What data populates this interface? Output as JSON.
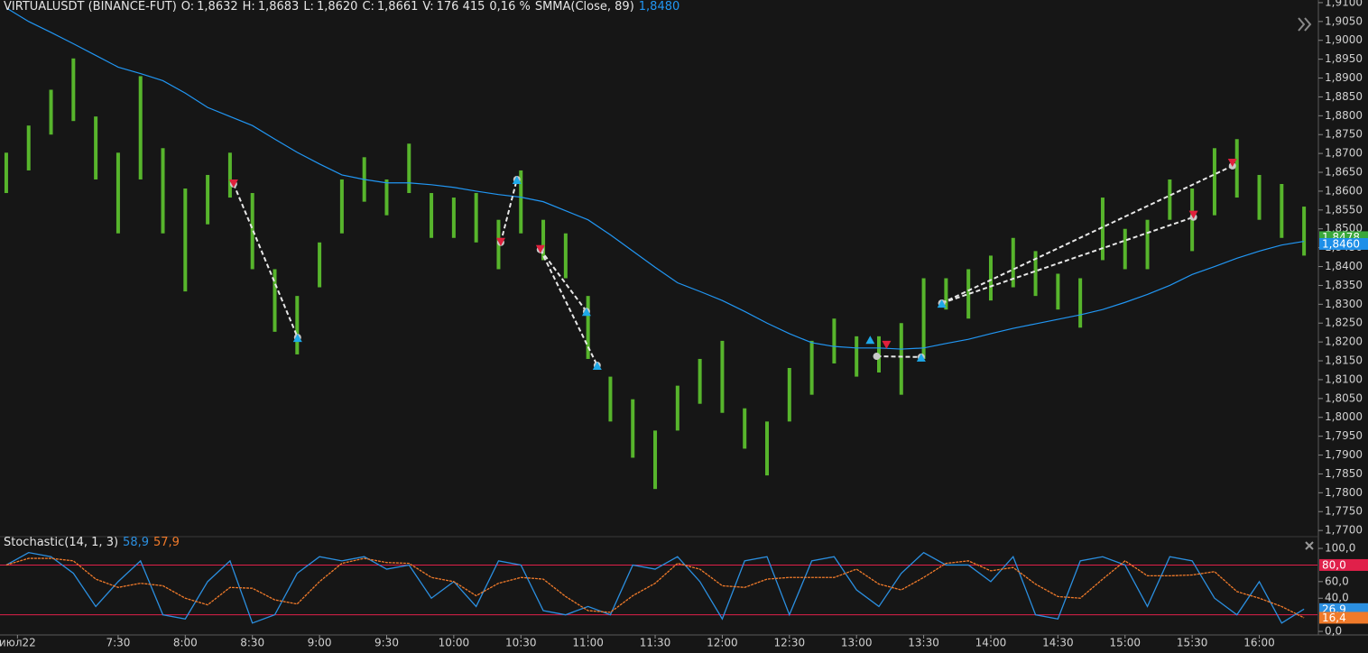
{
  "chart_data": [
    {
      "type": "range-bar",
      "title": "VIRTUALUSDT (BINANCE-FUT)",
      "stats": [
        {
          "label": "O:",
          "value": "1,8632"
        },
        {
          "label": "H:",
          "value": "1,8683"
        },
        {
          "label": "L:",
          "value": "1,8620"
        },
        {
          "label": "C:",
          "value": "1,8661"
        },
        {
          "label": "V:",
          "value": "176 415"
        }
      ],
      "change": "0,16 %",
      "x": [
        400,
        410,
        420,
        430,
        440,
        450,
        460,
        470,
        480,
        490,
        500,
        510,
        520,
        530,
        540,
        550,
        560,
        570,
        580,
        590,
        600,
        610,
        620,
        630,
        640,
        650,
        660,
        670,
        680,
        690,
        700,
        710,
        720,
        730,
        740,
        750,
        760,
        770,
        780,
        790,
        800,
        810,
        820,
        830,
        840,
        850,
        860,
        870,
        880,
        890,
        900,
        910,
        920,
        930,
        940,
        950,
        960,
        970,
        980
      ],
      "high": [
        1.8702,
        1.8774,
        1.8869,
        1.8952,
        1.8798,
        1.8702,
        1.8905,
        1.8714,
        1.8607,
        1.8643,
        1.8702,
        1.8595,
        1.8393,
        1.8322,
        1.8464,
        1.8631,
        1.869,
        1.8631,
        1.8726,
        1.8595,
        1.8583,
        1.8595,
        1.8524,
        1.8655,
        1.8524,
        1.8488,
        1.8322,
        1.8108,
        1.8048,
        1.7965,
        1.8084,
        1.8155,
        1.8203,
        1.8024,
        1.7989,
        1.8131,
        1.8203,
        1.8262,
        1.8215,
        1.8215,
        1.825,
        1.8369,
        1.8369,
        1.8393,
        1.8429,
        1.8476,
        1.8441,
        1.8381,
        1.8369,
        1.8583,
        1.85,
        1.8524,
        1.8631,
        1.8607,
        1.8714,
        1.8738,
        1.8643,
        1.8619,
        1.8559
      ],
      "low": [
        1.8595,
        1.8655,
        1.875,
        1.8786,
        1.8631,
        1.8488,
        1.8631,
        1.8488,
        1.8334,
        1.8512,
        1.8583,
        1.8393,
        1.8227,
        1.8167,
        1.8345,
        1.8488,
        1.8572,
        1.8536,
        1.8595,
        1.8476,
        1.8476,
        1.8464,
        1.8393,
        1.8488,
        1.8417,
        1.8369,
        1.8155,
        1.7989,
        1.7893,
        1.781,
        1.7965,
        1.8036,
        1.8012,
        1.7917,
        1.7846,
        1.7989,
        1.806,
        1.8143,
        1.8108,
        1.8119,
        1.806,
        1.8155,
        1.8286,
        1.8262,
        1.831,
        1.8345,
        1.8322,
        1.8286,
        1.8238,
        1.8417,
        1.8393,
        1.8393,
        1.8524,
        1.8441,
        1.8536,
        1.8583,
        1.8524,
        1.8476,
        1.8429
      ],
      "color": "#57b52c",
      "overlays": [
        {
          "name": "SMMA(Close, 89)",
          "header_value": "1,8480",
          "color": "#2196f3",
          "values": [
            1.9086,
            1.905,
            1.9021,
            1.8991,
            1.896,
            1.8929,
            1.8912,
            1.8893,
            1.886,
            1.8822,
            1.8798,
            1.8774,
            1.8738,
            1.8703,
            1.8672,
            1.8643,
            1.8631,
            1.8622,
            1.8622,
            1.8617,
            1.861,
            1.86,
            1.8591,
            1.8584,
            1.8572,
            1.8548,
            1.8524,
            1.8484,
            1.8441,
            1.8398,
            1.8357,
            1.8334,
            1.831,
            1.8281,
            1.825,
            1.8222,
            1.8198,
            1.8188,
            1.8184,
            1.8184,
            1.8181,
            1.8184,
            1.8196,
            1.8207,
            1.8222,
            1.8236,
            1.8248,
            1.826,
            1.8272,
            1.8286,
            1.8305,
            1.8326,
            1.835,
            1.8379,
            1.84,
            1.8422,
            1.8441,
            1.8457,
            1.8467
          ]
        }
      ],
      "signal_lines": [
        {
          "x": [
            501.6,
            530.2
          ],
          "y": [
            1.8619,
            1.8212
          ]
        },
        {
          "x": [
            621.0,
            628.2
          ],
          "y": [
            1.8464,
            1.8631
          ]
        },
        {
          "x": [
            638.7,
            659.3
          ],
          "y": [
            1.8445,
            1.8281
          ]
        },
        {
          "x": [
            638.7,
            664.1
          ],
          "y": [
            1.8445,
            1.8138
          ]
        },
        {
          "x": [
            789.0,
            808.9
          ],
          "y": [
            1.8162,
            1.816
          ]
        },
        {
          "x": [
            818.1,
            948.0
          ],
          "y": [
            1.8303,
            1.8667
          ]
        },
        {
          "x": [
            818.1,
            930.6
          ],
          "y": [
            1.8303,
            1.8531
          ]
        }
      ],
      "sell_markers": {
        "color": "#e0203c",
        "x": [
          501.6,
          621.0,
          638.7,
          793.4,
          930.6,
          948.0
        ],
        "y": [
          1.8619,
          1.8464,
          1.8445,
          1.8191,
          1.8536,
          1.8674
        ]
      },
      "buy_markers": {
        "color": "#1ea8e8",
        "x": [
          530.2,
          628.2,
          659.3,
          664.1,
          786.1,
          808.9,
          818.1
        ],
        "y": [
          1.8212,
          1.8631,
          1.8281,
          1.8138,
          1.8207,
          1.816,
          1.8303
        ]
      },
      "last_price_labels": [
        {
          "value": 1.8478,
          "label": "1,8478",
          "color": "#3aa83a"
        },
        {
          "value": 1.846,
          "label": "1,8460",
          "color": "#1e8fe8"
        }
      ],
      "xlim": [
        397.2,
        986
      ],
      "ylim": [
        1.7686,
        1.9107
      ],
      "yticks": [
        {
          "value": 1.77,
          "label": "1,7700"
        },
        {
          "value": 1.775,
          "label": "1,7750"
        },
        {
          "value": 1.78,
          "label": "1,7800"
        },
        {
          "value": 1.785,
          "label": "1,7850"
        },
        {
          "value": 1.79,
          "label": "1,7900"
        },
        {
          "value": 1.795,
          "label": "1,7950"
        },
        {
          "value": 1.8,
          "label": "1,8000"
        },
        {
          "value": 1.805,
          "label": "1,8050"
        },
        {
          "value": 1.81,
          "label": "1,8100"
        },
        {
          "value": 1.815,
          "label": "1,8150"
        },
        {
          "value": 1.82,
          "label": "1,8200"
        },
        {
          "value": 1.825,
          "label": "1,8250"
        },
        {
          "value": 1.83,
          "label": "1,8300"
        },
        {
          "value": 1.835,
          "label": "1,8350"
        },
        {
          "value": 1.84,
          "label": "1,8400"
        },
        {
          "value": 1.845,
          "label": "1,8450"
        },
        {
          "value": 1.85,
          "label": "1,8500"
        },
        {
          "value": 1.855,
          "label": "1,8550"
        },
        {
          "value": 1.86,
          "label": "1,8600"
        },
        {
          "value": 1.865,
          "label": "1,8650"
        },
        {
          "value": 1.87,
          "label": "1,8700"
        },
        {
          "value": 1.875,
          "label": "1,8750"
        },
        {
          "value": 1.88,
          "label": "1,8800"
        },
        {
          "value": 1.885,
          "label": "1,8850"
        },
        {
          "value": 1.89,
          "label": "1,8900"
        },
        {
          "value": 1.895,
          "label": "1,8950"
        },
        {
          "value": 1.9,
          "label": "1,9000"
        },
        {
          "value": 1.905,
          "label": "1,9050"
        },
        {
          "value": 1.91,
          "label": "1,9100"
        }
      ]
    },
    {
      "type": "line",
      "title": "Stochastic(14, 1, 3)",
      "x": [
        400,
        410,
        420,
        430,
        440,
        450,
        460,
        470,
        480,
        490,
        500,
        510,
        520,
        530,
        540,
        550,
        560,
        570,
        580,
        590,
        600,
        610,
        620,
        630,
        640,
        650,
        660,
        670,
        680,
        690,
        700,
        710,
        720,
        730,
        740,
        750,
        760,
        770,
        780,
        790,
        800,
        810,
        820,
        830,
        840,
        850,
        860,
        870,
        880,
        890,
        900,
        910,
        920,
        930,
        940,
        950,
        960,
        970,
        980
      ],
      "series": [
        {
          "color": "#2b8fe0",
          "header_value": "58,9",
          "last_label": "26,9",
          "values": [
            80,
            95,
            90,
            70,
            30,
            60,
            85,
            20,
            15,
            60,
            85,
            10,
            20,
            70,
            90,
            85,
            90,
            75,
            80,
            40,
            60,
            30,
            85,
            80,
            25,
            20,
            30,
            20,
            80,
            75,
            90,
            60,
            15,
            85,
            90,
            20,
            85,
            90,
            50,
            30,
            70,
            95,
            80,
            80,
            60,
            90,
            20,
            15,
            85,
            90,
            80,
            30,
            90,
            85,
            40,
            20,
            60,
            10,
            26.9
          ]
        },
        {
          "color": "#f07a2a",
          "header_value": "57,9",
          "last_label": "16,4",
          "values": [
            80,
            88,
            88,
            85,
            63,
            53,
            58,
            55,
            40,
            32,
            53,
            52,
            38,
            33,
            60,
            82,
            88,
            83,
            82,
            65,
            60,
            43,
            58,
            65,
            63,
            42,
            25,
            23,
            43,
            58,
            82,
            75,
            55,
            53,
            63,
            65,
            65,
            65,
            75,
            57,
            50,
            65,
            82,
            85,
            73,
            77,
            57,
            42,
            40,
            63,
            85,
            67,
            67,
            68,
            72,
            48,
            40,
            30,
            16.4
          ]
        }
      ],
      "levels": [
        {
          "value": 80,
          "label": "80,0"
        },
        {
          "value": 20
        }
      ],
      "level_color": "#e0204a",
      "xlim": [
        397.2,
        986
      ],
      "ylim": [
        -4.3,
        112
      ],
      "yticks": [
        {
          "value": 0,
          "label": "0,0"
        },
        {
          "value": 40,
          "label": "40,0"
        },
        {
          "value": 60,
          "label": "60,0"
        },
        {
          "value": 100,
          "label": "100,0"
        }
      ],
      "xticks": [
        {
          "value": 405,
          "label": "июл22"
        },
        {
          "value": 450,
          "label": "7:30"
        },
        {
          "value": 480,
          "label": "8:00"
        },
        {
          "value": 510,
          "label": "8:30"
        },
        {
          "value": 540,
          "label": "9:00"
        },
        {
          "value": 570,
          "label": "9:30"
        },
        {
          "value": 600,
          "label": "10:00"
        },
        {
          "value": 630,
          "label": "10:30"
        },
        {
          "value": 660,
          "label": "11:00"
        },
        {
          "value": 690,
          "label": "11:30"
        },
        {
          "value": 720,
          "label": "12:00"
        },
        {
          "value": 750,
          "label": "12:30"
        },
        {
          "value": 780,
          "label": "13:00"
        },
        {
          "value": 810,
          "label": "13:30"
        },
        {
          "value": 840,
          "label": "14:00"
        },
        {
          "value": 870,
          "label": "14:30"
        },
        {
          "value": 900,
          "label": "15:00"
        },
        {
          "value": 930,
          "label": "15:30"
        },
        {
          "value": 960,
          "label": "16:00"
        }
      ]
    }
  ]
}
